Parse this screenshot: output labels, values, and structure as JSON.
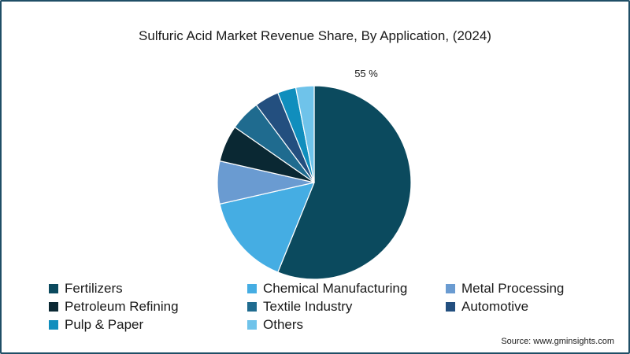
{
  "title": "Sulfuric Acid Market Revenue Share, By Application, (2024)",
  "source": "Source: www.gminsights.com",
  "chart_data": {
    "type": "pie",
    "title": "Sulfuric Acid Market Revenue Share, By Application, (2024)",
    "legend_position": "bottom",
    "start_angle_deg": 0,
    "direction": "clockwise",
    "slices": [
      {
        "label": "Fertilizers",
        "value": 55,
        "color": "#0b4a5e",
        "data_label": "55 %"
      },
      {
        "label": "Chemical Manufacturing",
        "value": 15,
        "color": "#45ade3"
      },
      {
        "label": "Metal Processing",
        "value": 7,
        "color": "#6a9bd1"
      },
      {
        "label": "Petroleum Refining",
        "value": 6,
        "color": "#0a2833"
      },
      {
        "label": "Textile Industry",
        "value": 5,
        "color": "#1f6b8f"
      },
      {
        "label": "Automotive",
        "value": 4,
        "color": "#234f7f"
      },
      {
        "label": "Pulp & Paper",
        "value": 3,
        "color": "#108ebd"
      },
      {
        "label": "Others",
        "value": 3,
        "color": "#6fc3ea"
      }
    ]
  }
}
